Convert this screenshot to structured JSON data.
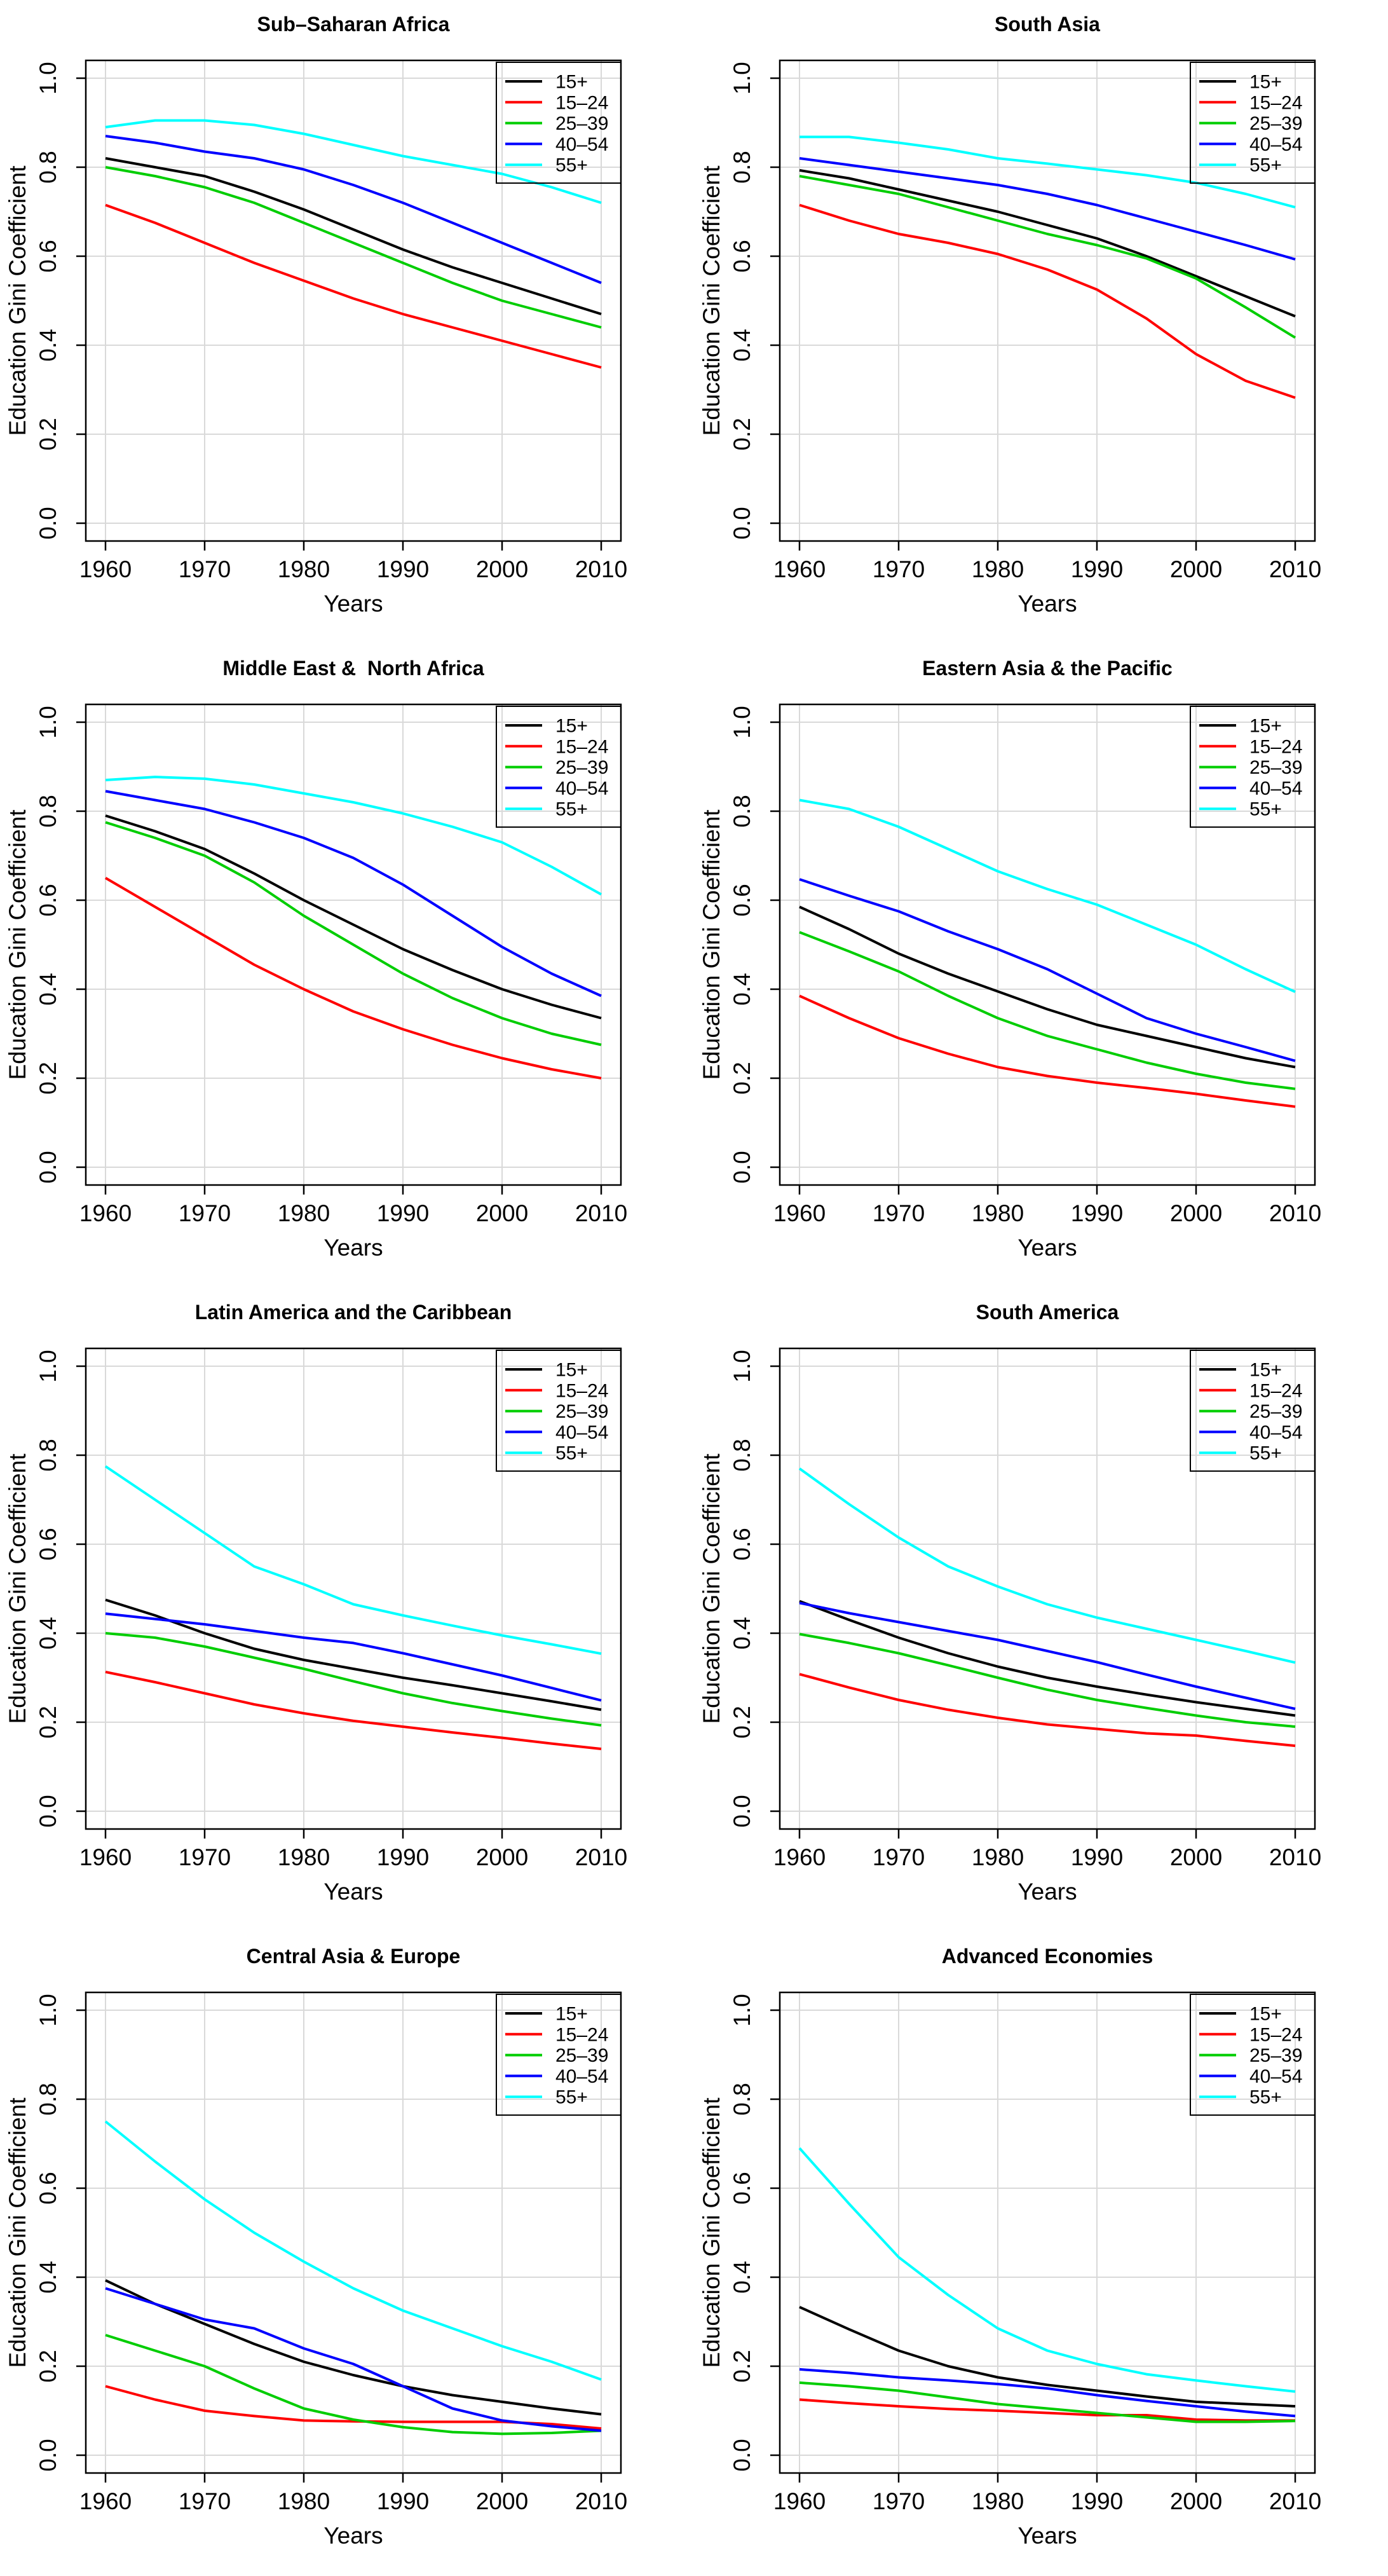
{
  "figure": {
    "background": "#ffffff",
    "grid_color": "#d9d9d9",
    "axis_color": "#000000",
    "xlabel": "Years",
    "ylabel": "Education Gini Coefficient",
    "x": [
      1960,
      1965,
      1970,
      1975,
      1980,
      1985,
      1990,
      1995,
      2000,
      2005,
      2010
    ],
    "xticks": [
      1960,
      1970,
      1980,
      1990,
      2000,
      2010
    ],
    "ytick_labels": [
      "0.0",
      "0.2",
      "0.4",
      "0.6",
      "0.8",
      "1.0"
    ],
    "ylim": [
      0.0,
      1.0
    ],
    "legend": {
      "position": "top-right",
      "labels": [
        "15+",
        "15–24",
        "25–39",
        "40–54",
        "55+"
      ]
    },
    "series_colors": [
      "#000000",
      "#ff0000",
      "#00cd00",
      "#0000ff",
      "#00ffff"
    ]
  },
  "chart_data": [
    {
      "type": "line",
      "title": "Sub–Saharan Africa",
      "series": [
        {
          "name": "15+",
          "color": "#000000",
          "values": [
            0.82,
            0.8,
            0.78,
            0.745,
            0.705,
            0.66,
            0.615,
            0.575,
            0.54,
            0.505,
            0.47
          ]
        },
        {
          "name": "15–24",
          "color": "#ff0000",
          "values": [
            0.715,
            0.675,
            0.63,
            0.585,
            0.545,
            0.505,
            0.47,
            0.44,
            0.41,
            0.38,
            0.35
          ]
        },
        {
          "name": "25–39",
          "color": "#00cd00",
          "values": [
            0.8,
            0.78,
            0.755,
            0.72,
            0.675,
            0.63,
            0.585,
            0.54,
            0.5,
            0.47,
            0.44
          ]
        },
        {
          "name": "40–54",
          "color": "#0000ff",
          "values": [
            0.87,
            0.855,
            0.835,
            0.82,
            0.795,
            0.76,
            0.72,
            0.675,
            0.63,
            0.585,
            0.54
          ]
        },
        {
          "name": "55+",
          "color": "#00ffff",
          "values": [
            0.89,
            0.905,
            0.905,
            0.895,
            0.875,
            0.85,
            0.825,
            0.805,
            0.785,
            0.755,
            0.72
          ]
        }
      ]
    },
    {
      "type": "line",
      "title": "South Asia",
      "series": [
        {
          "name": "15+",
          "color": "#000000",
          "values": [
            0.793,
            0.775,
            0.75,
            0.725,
            0.7,
            0.67,
            0.64,
            0.6,
            0.555,
            0.51,
            0.465
          ]
        },
        {
          "name": "15–24",
          "color": "#ff0000",
          "values": [
            0.715,
            0.68,
            0.65,
            0.63,
            0.605,
            0.57,
            0.525,
            0.46,
            0.38,
            0.32,
            0.282
          ]
        },
        {
          "name": "25–39",
          "color": "#00cd00",
          "values": [
            0.78,
            0.76,
            0.74,
            0.71,
            0.68,
            0.65,
            0.625,
            0.595,
            0.55,
            0.485,
            0.417
          ]
        },
        {
          "name": "40–54",
          "color": "#0000ff",
          "values": [
            0.82,
            0.805,
            0.79,
            0.775,
            0.76,
            0.74,
            0.715,
            0.685,
            0.655,
            0.625,
            0.593
          ]
        },
        {
          "name": "55+",
          "color": "#00ffff",
          "values": [
            0.868,
            0.868,
            0.855,
            0.84,
            0.82,
            0.808,
            0.795,
            0.782,
            0.765,
            0.74,
            0.71
          ]
        }
      ]
    },
    {
      "type": "line",
      "title": "Middle East &  North Africa",
      "series": [
        {
          "name": "15+",
          "color": "#000000",
          "values": [
            0.79,
            0.755,
            0.715,
            0.66,
            0.6,
            0.545,
            0.49,
            0.443,
            0.4,
            0.365,
            0.335
          ]
        },
        {
          "name": "15–24",
          "color": "#ff0000",
          "values": [
            0.65,
            0.585,
            0.52,
            0.455,
            0.4,
            0.35,
            0.31,
            0.275,
            0.245,
            0.22,
            0.2
          ]
        },
        {
          "name": "25–39",
          "color": "#00cd00",
          "values": [
            0.775,
            0.74,
            0.7,
            0.64,
            0.565,
            0.5,
            0.435,
            0.38,
            0.335,
            0.3,
            0.275
          ]
        },
        {
          "name": "40–54",
          "color": "#0000ff",
          "values": [
            0.845,
            0.825,
            0.805,
            0.775,
            0.74,
            0.695,
            0.635,
            0.565,
            0.495,
            0.435,
            0.385
          ]
        },
        {
          "name": "55+",
          "color": "#00ffff",
          "values": [
            0.87,
            0.877,
            0.873,
            0.86,
            0.84,
            0.82,
            0.795,
            0.765,
            0.73,
            0.675,
            0.613
          ]
        }
      ]
    },
    {
      "type": "line",
      "title": "Eastern Asia & the Pacific",
      "series": [
        {
          "name": "15+",
          "color": "#000000",
          "values": [
            0.585,
            0.535,
            0.48,
            0.435,
            0.395,
            0.355,
            0.32,
            0.295,
            0.27,
            0.245,
            0.225
          ]
        },
        {
          "name": "15–24",
          "color": "#ff0000",
          "values": [
            0.385,
            0.335,
            0.29,
            0.255,
            0.225,
            0.205,
            0.19,
            0.178,
            0.165,
            0.15,
            0.136
          ]
        },
        {
          "name": "25–39",
          "color": "#00cd00",
          "values": [
            0.528,
            0.485,
            0.44,
            0.385,
            0.335,
            0.295,
            0.265,
            0.235,
            0.21,
            0.19,
            0.176
          ]
        },
        {
          "name": "40–54",
          "color": "#0000ff",
          "values": [
            0.647,
            0.61,
            0.575,
            0.53,
            0.49,
            0.445,
            0.39,
            0.335,
            0.3,
            0.27,
            0.239
          ]
        },
        {
          "name": "55+",
          "color": "#00ffff",
          "values": [
            0.825,
            0.805,
            0.765,
            0.715,
            0.665,
            0.625,
            0.59,
            0.545,
            0.5,
            0.445,
            0.394
          ]
        }
      ]
    },
    {
      "type": "line",
      "title": "Latin America and the Caribbean",
      "series": [
        {
          "name": "15+",
          "color": "#000000",
          "values": [
            0.475,
            0.44,
            0.4,
            0.365,
            0.34,
            0.32,
            0.3,
            0.283,
            0.265,
            0.247,
            0.228
          ]
        },
        {
          "name": "15–24",
          "color": "#ff0000",
          "values": [
            0.313,
            0.29,
            0.265,
            0.24,
            0.22,
            0.203,
            0.19,
            0.177,
            0.165,
            0.152,
            0.14
          ]
        },
        {
          "name": "25–39",
          "color": "#00cd00",
          "values": [
            0.4,
            0.39,
            0.37,
            0.345,
            0.32,
            0.292,
            0.265,
            0.243,
            0.225,
            0.208,
            0.193
          ]
        },
        {
          "name": "40–54",
          "color": "#0000ff",
          "values": [
            0.444,
            0.432,
            0.42,
            0.405,
            0.39,
            0.378,
            0.355,
            0.33,
            0.305,
            0.277,
            0.249
          ]
        },
        {
          "name": "55+",
          "color": "#00ffff",
          "values": [
            0.775,
            0.7,
            0.625,
            0.55,
            0.51,
            0.465,
            0.44,
            0.417,
            0.395,
            0.375,
            0.354
          ]
        }
      ]
    },
    {
      "type": "line",
      "title": "South America",
      "series": [
        {
          "name": "15+",
          "color": "#000000",
          "values": [
            0.472,
            0.43,
            0.39,
            0.355,
            0.325,
            0.3,
            0.28,
            0.262,
            0.245,
            0.23,
            0.215
          ]
        },
        {
          "name": "15–24",
          "color": "#ff0000",
          "values": [
            0.308,
            0.278,
            0.25,
            0.228,
            0.21,
            0.195,
            0.185,
            0.175,
            0.17,
            0.158,
            0.147
          ]
        },
        {
          "name": "25–39",
          "color": "#00cd00",
          "values": [
            0.398,
            0.378,
            0.355,
            0.328,
            0.3,
            0.273,
            0.25,
            0.232,
            0.215,
            0.2,
            0.19
          ]
        },
        {
          "name": "40–54",
          "color": "#0000ff",
          "values": [
            0.468,
            0.445,
            0.425,
            0.405,
            0.385,
            0.36,
            0.335,
            0.307,
            0.28,
            0.255,
            0.23
          ]
        },
        {
          "name": "55+",
          "color": "#00ffff",
          "values": [
            0.77,
            0.69,
            0.615,
            0.55,
            0.505,
            0.465,
            0.435,
            0.41,
            0.385,
            0.36,
            0.334
          ]
        }
      ]
    },
    {
      "type": "line",
      "title": "Central Asia & Europe",
      "series": [
        {
          "name": "15+",
          "color": "#000000",
          "values": [
            0.393,
            0.34,
            0.295,
            0.25,
            0.21,
            0.18,
            0.155,
            0.135,
            0.12,
            0.105,
            0.092
          ]
        },
        {
          "name": "15–24",
          "color": "#ff0000",
          "values": [
            0.155,
            0.125,
            0.1,
            0.088,
            0.078,
            0.076,
            0.075,
            0.075,
            0.075,
            0.07,
            0.06
          ]
        },
        {
          "name": "25–39",
          "color": "#00cd00",
          "values": [
            0.27,
            0.235,
            0.2,
            0.15,
            0.105,
            0.08,
            0.063,
            0.052,
            0.048,
            0.05,
            0.055
          ]
        },
        {
          "name": "40–54",
          "color": "#0000ff",
          "values": [
            0.375,
            0.34,
            0.305,
            0.285,
            0.24,
            0.205,
            0.155,
            0.105,
            0.078,
            0.065,
            0.055
          ]
        },
        {
          "name": "55+",
          "color": "#00ffff",
          "values": [
            0.75,
            0.66,
            0.575,
            0.5,
            0.435,
            0.375,
            0.325,
            0.285,
            0.245,
            0.21,
            0.17
          ]
        }
      ]
    },
    {
      "type": "line",
      "title": "Advanced Economies",
      "series": [
        {
          "name": "15+",
          "color": "#000000",
          "values": [
            0.333,
            0.283,
            0.235,
            0.2,
            0.175,
            0.158,
            0.145,
            0.132,
            0.12,
            0.115,
            0.11
          ]
        },
        {
          "name": "15–24",
          "color": "#ff0000",
          "values": [
            0.125,
            0.117,
            0.11,
            0.104,
            0.1,
            0.095,
            0.09,
            0.09,
            0.08,
            0.078,
            0.078
          ]
        },
        {
          "name": "25–39",
          "color": "#00cd00",
          "values": [
            0.163,
            0.155,
            0.145,
            0.13,
            0.115,
            0.105,
            0.095,
            0.085,
            0.075,
            0.075,
            0.077
          ]
        },
        {
          "name": "40–54",
          "color": "#0000ff",
          "values": [
            0.193,
            0.185,
            0.175,
            0.168,
            0.16,
            0.15,
            0.135,
            0.122,
            0.11,
            0.098,
            0.088
          ]
        },
        {
          "name": "55+",
          "color": "#00ffff",
          "values": [
            0.69,
            0.565,
            0.445,
            0.36,
            0.285,
            0.235,
            0.205,
            0.182,
            0.168,
            0.155,
            0.143
          ]
        }
      ]
    }
  ]
}
